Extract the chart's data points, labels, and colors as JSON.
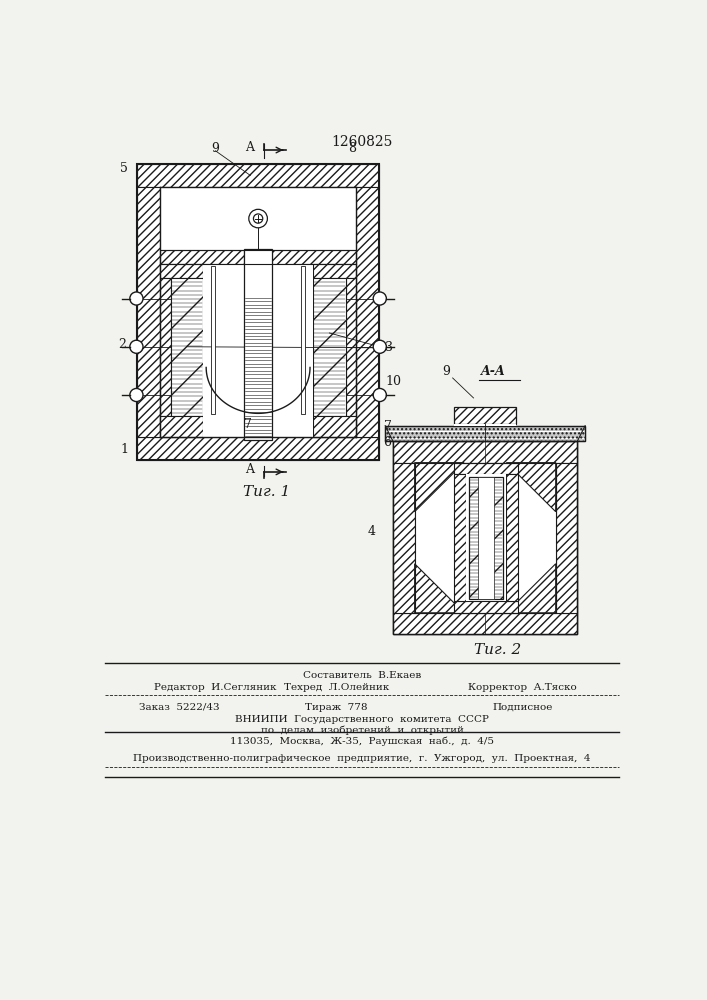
{
  "patent_number": "1260825",
  "bg": "#f2f2ee",
  "lc": "#1a1a1a",
  "fig1_caption": "Τиг. 1",
  "fig2_caption": "Τиг. 2",
  "footer_sestavitel": "Составитель  В.Екаев",
  "footer_redaktor": "Редактор  И.Сегляник",
  "footer_tehred": "Техред  Л.Олейник",
  "footer_korrektor": "Корректор  А.Тяско",
  "footer_zakaz": "Заказ  5222/43",
  "footer_tirazh": "Тираж  778",
  "footer_podpisnoe": "Подписное",
  "footer_vnipi1": "ВНИИПИ  Государственного  комитета  СССР",
  "footer_vnipi2": "по  делам  изобретений  и  открытий",
  "footer_vnipi3": "113035,  Москва,  Ж-35,  Раушская  наб.,  д.  4/5",
  "footer_printer": "Производственно-полиграфическое  предприятие,  г.  Ужгород,  ул.  Проектная,  4"
}
